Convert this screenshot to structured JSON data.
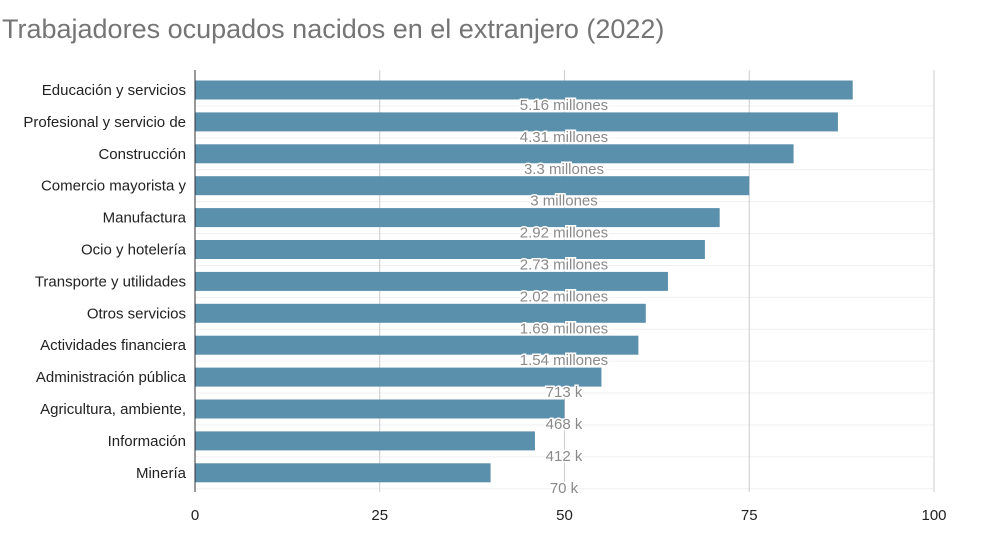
{
  "chart_data": {
    "type": "bar",
    "orientation": "horizontal",
    "title": "Trabajadores ocupados nacidos en el extranjero (2022)",
    "xlim": [
      0,
      100
    ],
    "x_ticks": [
      "0",
      "25",
      "50",
      "75",
      "100"
    ],
    "grid": true,
    "legend": "none",
    "bar_color": "#5b90ad",
    "categories": [
      "Educación y servicios",
      "Profesional y servicio de",
      "Construcción",
      "Comercio mayorista y",
      "Manufactura",
      "Ocio y hotelería",
      "Transporte y utilidades",
      "Otros servicios",
      "Actividades financiera",
      "Administración pública",
      "Agricultura, ambiente,",
      "Información",
      "Minería"
    ],
    "values": [
      89,
      87,
      81,
      75,
      71,
      69,
      64,
      61,
      60,
      55,
      50,
      46,
      40
    ],
    "data_labels": [
      "5.16 millones",
      "4.31 millones",
      "3.3 millones",
      "3 millones",
      "2.92 millones",
      "2.73 millones",
      "2.02 millones",
      "1.69 millones",
      "1.54 millones",
      "713 k",
      "468 k",
      "412 k",
      "70 k"
    ]
  }
}
